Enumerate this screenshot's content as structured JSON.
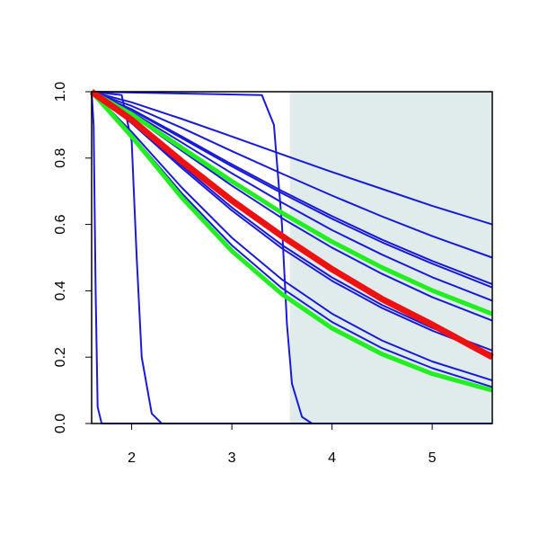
{
  "chart_data": {
    "type": "line",
    "xlim": [
      1.6,
      5.6
    ],
    "xticks": [
      2,
      3,
      4,
      5
    ],
    "ylim": [
      0,
      1
    ],
    "yticks": [
      {
        "value": 0,
        "label": "0.0"
      },
      0.2,
      0.4,
      0.6,
      0.8,
      {
        "value": 1,
        "label": "1.0"
      }
    ],
    "shaded_region": {
      "xlim": [
        3.58,
        5.6
      ],
      "color": "#dfeceb"
    },
    "series": [
      {
        "color": "#1a1ad6",
        "width": 2,
        "x": [
          1.6,
          2.0,
          2.5,
          3.0,
          3.5,
          4.0,
          4.5,
          5.0,
          5.6
        ],
        "values": [
          1,
          0.968,
          0.918,
          0.865,
          0.811,
          0.758,
          0.707,
          0.656,
          0.6
        ]
      },
      {
        "color": "#1a1ad6",
        "width": 2,
        "x": [
          1.6,
          2.0,
          2.5,
          3.0,
          3.5,
          4.0,
          4.5,
          5.0,
          5.6
        ],
        "values": [
          1,
          0.957,
          0.891,
          0.821,
          0.753,
          0.687,
          0.624,
          0.565,
          0.5
        ]
      },
      {
        "color": "#1a1ad6",
        "width": 2,
        "x": [
          1.6,
          2.0,
          2.5,
          3.0,
          3.5,
          4.0,
          4.5,
          5.0,
          5.6
        ],
        "values": [
          1,
          0.947,
          0.865,
          0.781,
          0.701,
          0.625,
          0.554,
          0.49,
          0.42
        ]
      },
      {
        "color": "#1a1ad6",
        "width": 2,
        "x": [
          1.6,
          2.0,
          2.5,
          3.0,
          3.5,
          4.0,
          4.5,
          5.0,
          5.6
        ],
        "values": [
          1,
          0.945,
          0.86,
          0.775,
          0.694,
          0.617,
          0.546,
          0.482,
          0.41
        ]
      },
      {
        "color": "#1a1ad6",
        "width": 2,
        "x": [
          1.6,
          2.0,
          2.5,
          3.0,
          3.5,
          4.0,
          4.5,
          5.0,
          5.6
        ],
        "values": [
          1,
          0.939,
          0.847,
          0.754,
          0.666,
          0.583,
          0.509,
          0.441,
          0.37
        ]
      },
      {
        "color": "#1a1ad6",
        "width": 2,
        "x": [
          1.6,
          2.0,
          2.5,
          3.0,
          3.5,
          4.0,
          4.5,
          5.0,
          5.6
        ],
        "values": [
          1,
          0.929,
          0.822,
          0.717,
          0.619,
          0.53,
          0.451,
          0.381,
          0.31
        ]
      },
      {
        "color": "#1a1ad6",
        "width": 2,
        "x": [
          1.6,
          2.0,
          2.5,
          3.0,
          3.5,
          4.0,
          4.5,
          5.0,
          5.6
        ],
        "values": [
          1,
          0.909,
          0.777,
          0.651,
          0.538,
          0.44,
          0.357,
          0.288,
          0.22
        ]
      },
      {
        "color": "#1a1ad6",
        "width": 2,
        "x": [
          1.6,
          2.0,
          2.5,
          3.0,
          3.5,
          4.0,
          4.5,
          5.0,
          5.6
        ],
        "values": [
          1,
          0.905,
          0.77,
          0.642,
          0.528,
          0.43,
          0.348,
          0.28,
          0.21
        ]
      },
      {
        "color": "#1a1ad6",
        "width": 2,
        "x": [
          1.6,
          2.0,
          2.5,
          3.0,
          3.5,
          4.0,
          4.5,
          5.0,
          5.6
        ],
        "values": [
          1,
          0.879,
          0.711,
          0.56,
          0.434,
          0.331,
          0.25,
          0.187,
          0.13
        ]
      },
      {
        "color": "#1a1ad6",
        "width": 2,
        "x": [
          1.6,
          2.0,
          2.5,
          3.0,
          3.5,
          4.0,
          4.5,
          5.0,
          5.6
        ],
        "values": [
          1,
          0.87,
          0.694,
          0.537,
          0.408,
          0.306,
          0.227,
          0.167,
          0.11
        ]
      },
      {
        "color": "#1a1ad6",
        "width": 2,
        "x": [
          1.6,
          1.62,
          1.64,
          1.66,
          1.7,
          5.6
        ],
        "values": [
          1,
          0.9,
          0.4,
          0.05,
          0,
          0
        ]
      },
      {
        "color": "#1a1ad6",
        "width": 2,
        "x": [
          1.6,
          1.9,
          2.0,
          2.05,
          2.1,
          2.2,
          2.3,
          5.6
        ],
        "values": [
          1,
          0.99,
          0.85,
          0.5,
          0.2,
          0.03,
          0,
          0
        ]
      },
      {
        "color": "#1a1ad6",
        "width": 2,
        "x": [
          1.6,
          3.3,
          3.42,
          3.5,
          3.55,
          3.6,
          3.7,
          3.8,
          5.6
        ],
        "values": [
          1,
          0.99,
          0.9,
          0.6,
          0.3,
          0.12,
          0.02,
          0,
          0
        ]
      },
      {
        "color": "#22ee22",
        "width": 5,
        "x": [
          1.6,
          2.0,
          2.5,
          3.0,
          3.5,
          4.0,
          4.5,
          5.0,
          5.6
        ],
        "values": [
          1,
          0.932,
          0.831,
          0.73,
          0.635,
          0.548,
          0.47,
          0.401,
          0.33
        ]
      },
      {
        "color": "#22ee22",
        "width": 5,
        "x": [
          1.6,
          2.0,
          2.5,
          3.0,
          3.5,
          4.0,
          4.5,
          5.0,
          5.6
        ],
        "values": [
          1,
          0.865,
          0.681,
          0.52,
          0.39,
          0.287,
          0.209,
          0.15,
          0.1
        ]
      },
      {
        "color": "#ee1111",
        "width": 7,
        "x": [
          1.6,
          2.0,
          2.5,
          3.0,
          3.5,
          4.0,
          4.5,
          5.0,
          5.6
        ],
        "values": [
          1,
          0.915,
          0.79,
          0.672,
          0.565,
          0.465,
          0.375,
          0.298,
          0.2
        ]
      }
    ]
  }
}
